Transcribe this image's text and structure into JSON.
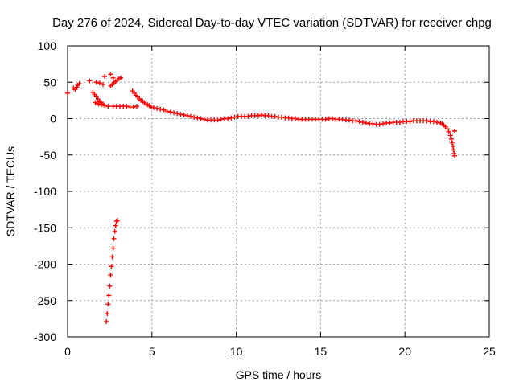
{
  "chart_data": {
    "type": "scatter",
    "title": "Day 276 of 2024, Sidereal Day-to-day VTEC variation (SDTVAR) for receiver chpg",
    "xlabel": "GPS time / hours",
    "ylabel": "SDTVAR / TECUs",
    "xlim": [
      0,
      25
    ],
    "ylim": [
      -300,
      100
    ],
    "x_ticks": [
      0,
      5,
      10,
      15,
      20,
      25
    ],
    "y_ticks": [
      -300,
      -250,
      -200,
      -150,
      -100,
      -50,
      0,
      50,
      100
    ],
    "x_tick_labels": [
      "0",
      "5",
      "10",
      "15",
      "20",
      "25"
    ],
    "y_tick_labels": [
      "-300",
      "-250",
      "-200",
      "-150",
      "-100",
      "-50",
      "0",
      "50",
      "100"
    ],
    "grid": true,
    "marker": "+",
    "color": "#ff0000",
    "series": [
      {
        "name": "SDTVAR",
        "points": [
          [
            0.0,
            35
          ],
          [
            0.35,
            42
          ],
          [
            0.45,
            40
          ],
          [
            0.55,
            43
          ],
          [
            0.6,
            46
          ],
          [
            0.7,
            48
          ],
          [
            1.3,
            52
          ],
          [
            1.7,
            50
          ],
          [
            1.9,
            49
          ],
          [
            2.1,
            47
          ],
          [
            2.2,
            58
          ],
          [
            2.55,
            61
          ],
          [
            2.7,
            56
          ],
          [
            2.55,
            45
          ],
          [
            2.65,
            47
          ],
          [
            2.75,
            49
          ],
          [
            2.85,
            51
          ],
          [
            2.95,
            53
          ],
          [
            3.05,
            55
          ],
          [
            3.15,
            56
          ],
          [
            1.5,
            36
          ],
          [
            1.6,
            33
          ],
          [
            1.7,
            30
          ],
          [
            1.8,
            27
          ],
          [
            1.9,
            24
          ],
          [
            2.0,
            22
          ],
          [
            2.1,
            20
          ],
          [
            1.65,
            22
          ],
          [
            1.75,
            21
          ],
          [
            1.85,
            20
          ],
          [
            2.0,
            19
          ],
          [
            2.2,
            18
          ],
          [
            2.4,
            17
          ],
          [
            2.7,
            17
          ],
          [
            2.9,
            17
          ],
          [
            3.1,
            17
          ],
          [
            3.3,
            17
          ],
          [
            3.5,
            17
          ],
          [
            3.7,
            16
          ],
          [
            3.9,
            16
          ],
          [
            4.1,
            17
          ],
          [
            3.85,
            38
          ],
          [
            3.95,
            35
          ],
          [
            4.05,
            32
          ],
          [
            4.15,
            30
          ],
          [
            4.25,
            27
          ],
          [
            4.35,
            25
          ],
          [
            4.45,
            24
          ],
          [
            4.55,
            22
          ],
          [
            4.65,
            20
          ],
          [
            4.75,
            19
          ],
          [
            4.85,
            18
          ],
          [
            4.95,
            16
          ],
          [
            5.1,
            15
          ],
          [
            5.3,
            14
          ],
          [
            5.5,
            13
          ],
          [
            5.7,
            12
          ],
          [
            5.9,
            10
          ],
          [
            6.1,
            9
          ],
          [
            6.3,
            8
          ],
          [
            6.5,
            7
          ],
          [
            6.7,
            6
          ],
          [
            6.9,
            5
          ],
          [
            7.1,
            4
          ],
          [
            7.3,
            3
          ],
          [
            7.5,
            2
          ],
          [
            7.7,
            1
          ],
          [
            7.9,
            0
          ],
          [
            8.1,
            -1
          ],
          [
            8.3,
            -2
          ],
          [
            8.5,
            -2
          ],
          [
            8.7,
            -2
          ],
          [
            8.9,
            -2
          ],
          [
            9.1,
            -1
          ],
          [
            9.3,
            0
          ],
          [
            9.5,
            0
          ],
          [
            9.7,
            1
          ],
          [
            9.9,
            2
          ],
          [
            10.1,
            3
          ],
          [
            10.3,
            3
          ],
          [
            10.5,
            3
          ],
          [
            10.7,
            3
          ],
          [
            10.9,
            4
          ],
          [
            11.1,
            4
          ],
          [
            11.3,
            4
          ],
          [
            11.5,
            5
          ],
          [
            11.7,
            4
          ],
          [
            11.9,
            4
          ],
          [
            12.1,
            3
          ],
          [
            12.3,
            3
          ],
          [
            12.5,
            2
          ],
          [
            12.7,
            2
          ],
          [
            12.9,
            1
          ],
          [
            13.1,
            1
          ],
          [
            13.3,
            0
          ],
          [
            13.5,
            0
          ],
          [
            13.7,
            -1
          ],
          [
            13.9,
            -1
          ],
          [
            14.1,
            -1
          ],
          [
            14.3,
            -1
          ],
          [
            14.5,
            -1
          ],
          [
            14.7,
            -1
          ],
          [
            14.9,
            -1
          ],
          [
            15.1,
            -1
          ],
          [
            15.3,
            -1
          ],
          [
            15.5,
            0
          ],
          [
            15.7,
            0
          ],
          [
            15.9,
            -1
          ],
          [
            16.1,
            -1
          ],
          [
            16.3,
            -1
          ],
          [
            16.5,
            -2
          ],
          [
            16.7,
            -2
          ],
          [
            16.9,
            -3
          ],
          [
            17.1,
            -3
          ],
          [
            17.3,
            -4
          ],
          [
            17.5,
            -5
          ],
          [
            17.7,
            -6
          ],
          [
            17.9,
            -7
          ],
          [
            18.1,
            -7
          ],
          [
            18.3,
            -8
          ],
          [
            18.5,
            -8
          ],
          [
            18.7,
            -7
          ],
          [
            18.9,
            -6
          ],
          [
            19.1,
            -6
          ],
          [
            19.3,
            -5
          ],
          [
            19.5,
            -5
          ],
          [
            19.7,
            -5
          ],
          [
            19.9,
            -4
          ],
          [
            20.1,
            -4
          ],
          [
            20.3,
            -4
          ],
          [
            20.5,
            -3
          ],
          [
            20.7,
            -3
          ],
          [
            20.9,
            -3
          ],
          [
            21.1,
            -3
          ],
          [
            21.3,
            -3
          ],
          [
            21.5,
            -4
          ],
          [
            21.7,
            -4
          ],
          [
            21.9,
            -5
          ],
          [
            22.1,
            -6
          ],
          [
            22.2,
            -7
          ],
          [
            22.3,
            -9
          ],
          [
            22.4,
            -11
          ],
          [
            22.5,
            -14
          ],
          [
            22.6,
            -18
          ],
          [
            22.7,
            -23
          ],
          [
            22.75,
            -28
          ],
          [
            22.8,
            -33
          ],
          [
            22.85,
            -38
          ],
          [
            22.88,
            -43
          ],
          [
            22.92,
            -48
          ],
          [
            22.95,
            -51
          ],
          [
            22.95,
            -17
          ],
          [
            2.3,
            -279
          ],
          [
            2.35,
            -268
          ],
          [
            2.4,
            -255
          ],
          [
            2.45,
            -243
          ],
          [
            2.5,
            -230
          ],
          [
            2.55,
            -215
          ],
          [
            2.6,
            -203
          ],
          [
            2.65,
            -190
          ],
          [
            2.7,
            -178
          ],
          [
            2.75,
            -165
          ],
          [
            2.8,
            -155
          ],
          [
            2.85,
            -147
          ],
          [
            2.9,
            -141
          ],
          [
            2.95,
            -140
          ]
        ]
      }
    ]
  }
}
